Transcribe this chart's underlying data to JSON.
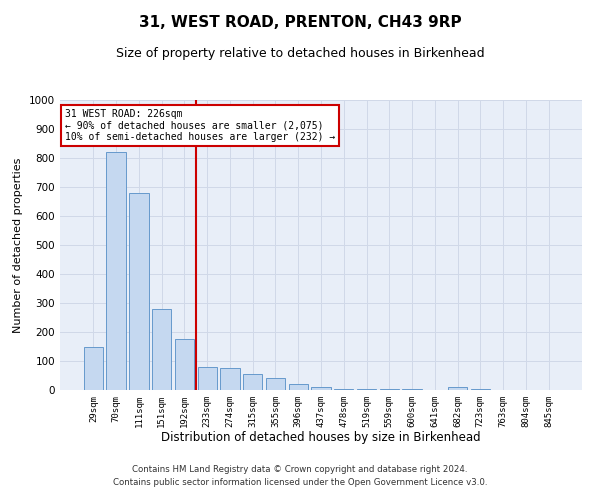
{
  "title": "31, WEST ROAD, PRENTON, CH43 9RP",
  "subtitle": "Size of property relative to detached houses in Birkenhead",
  "xlabel": "Distribution of detached houses by size in Birkenhead",
  "ylabel": "Number of detached properties",
  "categories": [
    "29sqm",
    "70sqm",
    "111sqm",
    "151sqm",
    "192sqm",
    "233sqm",
    "274sqm",
    "315sqm",
    "355sqm",
    "396sqm",
    "437sqm",
    "478sqm",
    "519sqm",
    "559sqm",
    "600sqm",
    "641sqm",
    "682sqm",
    "723sqm",
    "763sqm",
    "804sqm",
    "845sqm"
  ],
  "values": [
    150,
    820,
    680,
    280,
    175,
    80,
    75,
    55,
    40,
    20,
    12,
    5,
    5,
    2,
    2,
    0,
    10,
    5,
    0,
    0,
    0
  ],
  "bar_color": "#c5d8f0",
  "bar_edge_color": "#6699cc",
  "vline_x": 4.5,
  "vline_color": "#cc0000",
  "annotation_text": "31 WEST ROAD: 226sqm\n← 90% of detached houses are smaller (2,075)\n10% of semi-detached houses are larger (232) →",
  "annotation_box_color": "#ffffff",
  "annotation_box_edge_color": "#cc0000",
  "ylim": [
    0,
    1000
  ],
  "yticks": [
    0,
    100,
    200,
    300,
    400,
    500,
    600,
    700,
    800,
    900,
    1000
  ],
  "footnote1": "Contains HM Land Registry data © Crown copyright and database right 2024.",
  "footnote2": "Contains public sector information licensed under the Open Government Licence v3.0.",
  "grid_color": "#d0d8e8",
  "background_color": "#e8eef8",
  "title_fontsize": 11,
  "subtitle_fontsize": 9,
  "ylabel_fontsize": 8,
  "xlabel_fontsize": 8.5
}
